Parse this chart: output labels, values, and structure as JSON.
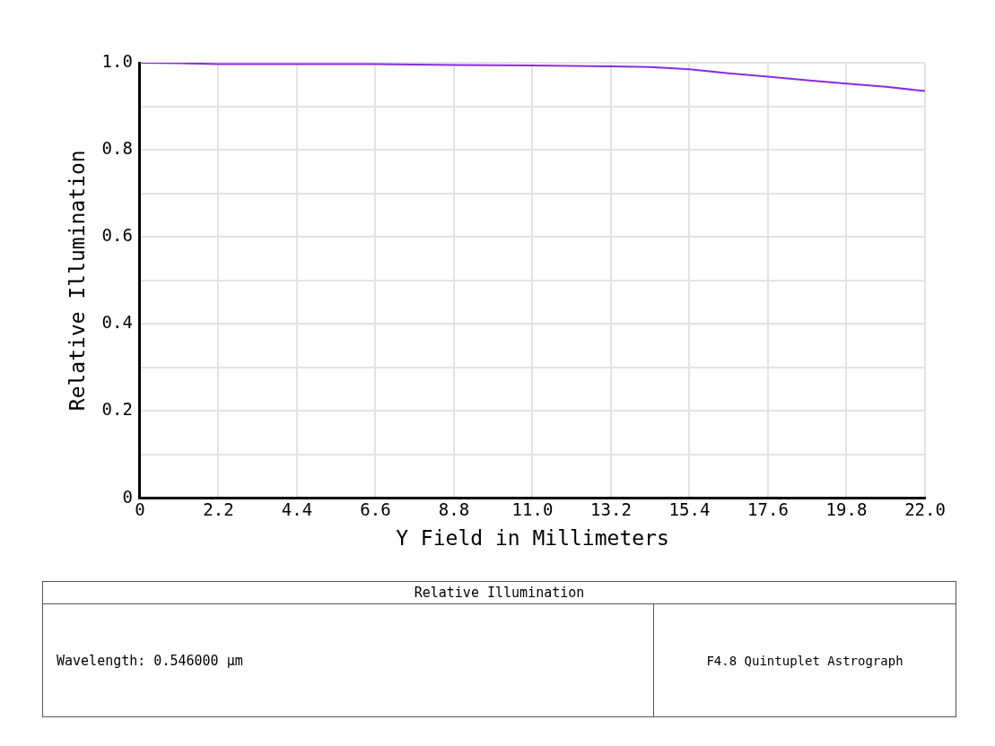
{
  "chart_data": {
    "type": "line",
    "title": "Relative Illumination",
    "xlabel": "Y Field in Millimeters",
    "ylabel": "Relative Illumination",
    "annotations": [
      "Wavelength: 0.546000 µm",
      "F4.8 Quintuplet Astrograph"
    ],
    "x": [
      0,
      1.1,
      2.2,
      4.4,
      6.6,
      8.8,
      11.0,
      13.2,
      14.3,
      15.4,
      16.5,
      17.6,
      18.7,
      19.8,
      20.9,
      22.0
    ],
    "series": [
      {
        "color": "#8a2be2",
        "values": [
          1.0,
          0.999,
          0.997,
          0.997,
          0.997,
          0.995,
          0.994,
          0.992,
          0.99,
          0.985,
          0.976,
          0.968,
          0.96,
          0.952,
          0.945,
          0.935
        ]
      }
    ],
    "xlim": [
      0,
      22
    ],
    "ylim": [
      0,
      1
    ],
    "xticks": [
      0,
      2.2,
      4.4,
      6.6,
      8.8,
      {
        "value": 11,
        "label": "11.0"
      },
      13.2,
      15.4,
      17.6,
      19.8,
      {
        "value": 22,
        "label": "22.0"
      }
    ],
    "yticks": [
      0,
      {
        "value": 0.1,
        "label": null
      },
      0.2,
      {
        "value": 0.3,
        "label": null
      },
      0.4,
      {
        "value": 0.5,
        "label": null
      },
      0.6,
      {
        "value": 0.7,
        "label": null
      },
      0.8,
      {
        "value": 0.9,
        "label": null
      },
      {
        "value": 1,
        "label": "1.0"
      }
    ],
    "grid": true,
    "legend": false,
    "marker": "none",
    "line_style": "solid"
  }
}
